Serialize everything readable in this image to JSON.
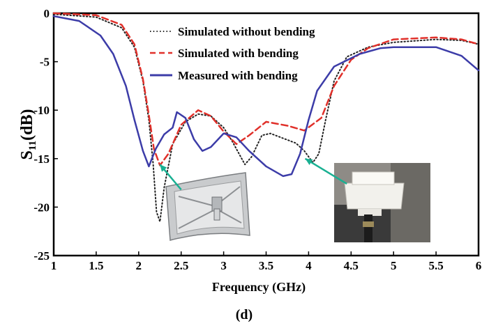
{
  "chart_data": {
    "type": "line",
    "panel_label": "(d)",
    "xlabel": "Frequency (GHz)",
    "ylabel": "S11(dB)",
    "ylabel_main": "S",
    "ylabel_sub": "11",
    "ylabel_tail": "(dB)",
    "xlim": [
      1,
      6
    ],
    "ylim": [
      -25,
      0
    ],
    "xticks": [
      1,
      1.5,
      2,
      2.5,
      3,
      3.5,
      4,
      4.5,
      5,
      5.5,
      6
    ],
    "yticks": [
      0,
      -5,
      -10,
      -15,
      -20,
      -25
    ],
    "grid": false,
    "legend_position": "top-right",
    "series": [
      {
        "name": "Simulated without bending",
        "color": "#222222",
        "style": "dotted",
        "points": [
          [
            1,
            -0.1
          ],
          [
            1.5,
            -0.4
          ],
          [
            1.8,
            -1.5
          ],
          [
            1.95,
            -3.5
          ],
          [
            2.05,
            -7
          ],
          [
            2.12,
            -11
          ],
          [
            2.17,
            -15.5
          ],
          [
            2.21,
            -20.5
          ],
          [
            2.25,
            -21.5
          ],
          [
            2.3,
            -18
          ],
          [
            2.4,
            -13.5
          ],
          [
            2.55,
            -11.2
          ],
          [
            2.7,
            -10.4
          ],
          [
            2.85,
            -10.6
          ],
          [
            3.0,
            -11.8
          ],
          [
            3.1,
            -13.2
          ],
          [
            3.25,
            -15.6
          ],
          [
            3.33,
            -14.8
          ],
          [
            3.45,
            -12.6
          ],
          [
            3.55,
            -12.4
          ],
          [
            3.7,
            -12.9
          ],
          [
            3.85,
            -13.4
          ],
          [
            3.95,
            -14.2
          ],
          [
            4.05,
            -15.4
          ],
          [
            4.12,
            -14.5
          ],
          [
            4.2,
            -11
          ],
          [
            4.3,
            -7
          ],
          [
            4.45,
            -4.5
          ],
          [
            4.7,
            -3.5
          ],
          [
            5.0,
            -3.0
          ],
          [
            5.5,
            -2.7
          ],
          [
            5.8,
            -2.8
          ],
          [
            6.0,
            -3.2
          ]
        ]
      },
      {
        "name": "Simulated with bending",
        "color": "#e0302a",
        "style": "dashed",
        "points": [
          [
            1,
            0
          ],
          [
            1.5,
            -0.2
          ],
          [
            1.8,
            -1.2
          ],
          [
            1.95,
            -3.2
          ],
          [
            2.05,
            -6.8
          ],
          [
            2.12,
            -10.5
          ],
          [
            2.18,
            -14
          ],
          [
            2.25,
            -15.7
          ],
          [
            2.35,
            -14.5
          ],
          [
            2.5,
            -11.5
          ],
          [
            2.7,
            -10
          ],
          [
            2.85,
            -10.6
          ],
          [
            3.0,
            -12.2
          ],
          [
            3.15,
            -13.5
          ],
          [
            3.3,
            -12.6
          ],
          [
            3.5,
            -11.2
          ],
          [
            3.75,
            -11.6
          ],
          [
            3.95,
            -12.1
          ],
          [
            4.15,
            -10.8
          ],
          [
            4.3,
            -7.5
          ],
          [
            4.5,
            -4.8
          ],
          [
            4.7,
            -3.6
          ],
          [
            5.0,
            -2.7
          ],
          [
            5.5,
            -2.5
          ],
          [
            5.8,
            -2.7
          ],
          [
            6.0,
            -3.2
          ]
        ]
      },
      {
        "name": "Measured with bending",
        "color": "#3c3ca8",
        "style": "solid",
        "points": [
          [
            1,
            -0.3
          ],
          [
            1.3,
            -0.8
          ],
          [
            1.55,
            -2.3
          ],
          [
            1.7,
            -4.2
          ],
          [
            1.85,
            -7.5
          ],
          [
            1.95,
            -11
          ],
          [
            2.05,
            -14.2
          ],
          [
            2.12,
            -15.8
          ],
          [
            2.2,
            -14
          ],
          [
            2.3,
            -12.5
          ],
          [
            2.4,
            -11.8
          ],
          [
            2.45,
            -10.2
          ],
          [
            2.55,
            -10.8
          ],
          [
            2.65,
            -13
          ],
          [
            2.75,
            -14.2
          ],
          [
            2.85,
            -13.8
          ],
          [
            3.0,
            -12.4
          ],
          [
            3.15,
            -12.8
          ],
          [
            3.3,
            -14.2
          ],
          [
            3.5,
            -15.8
          ],
          [
            3.7,
            -16.8
          ],
          [
            3.8,
            -16.6
          ],
          [
            3.9,
            -14.5
          ],
          [
            4.0,
            -11
          ],
          [
            4.1,
            -8
          ],
          [
            4.3,
            -5.5
          ],
          [
            4.6,
            -4.2
          ],
          [
            4.85,
            -3.6
          ],
          [
            5.0,
            -3.5
          ],
          [
            5.5,
            -3.5
          ],
          [
            5.8,
            -4.4
          ],
          [
            6.0,
            -5.9
          ]
        ]
      }
    ],
    "annotations": [
      {
        "type": "arrow",
        "color": "#19b092",
        "from": [
          2.5,
          -18.2
        ],
        "to": [
          2.25,
          -15.6
        ]
      },
      {
        "type": "arrow",
        "color": "#19b092",
        "from": [
          4.45,
          -17.6
        ],
        "to": [
          3.96,
          -15.0
        ]
      }
    ]
  }
}
